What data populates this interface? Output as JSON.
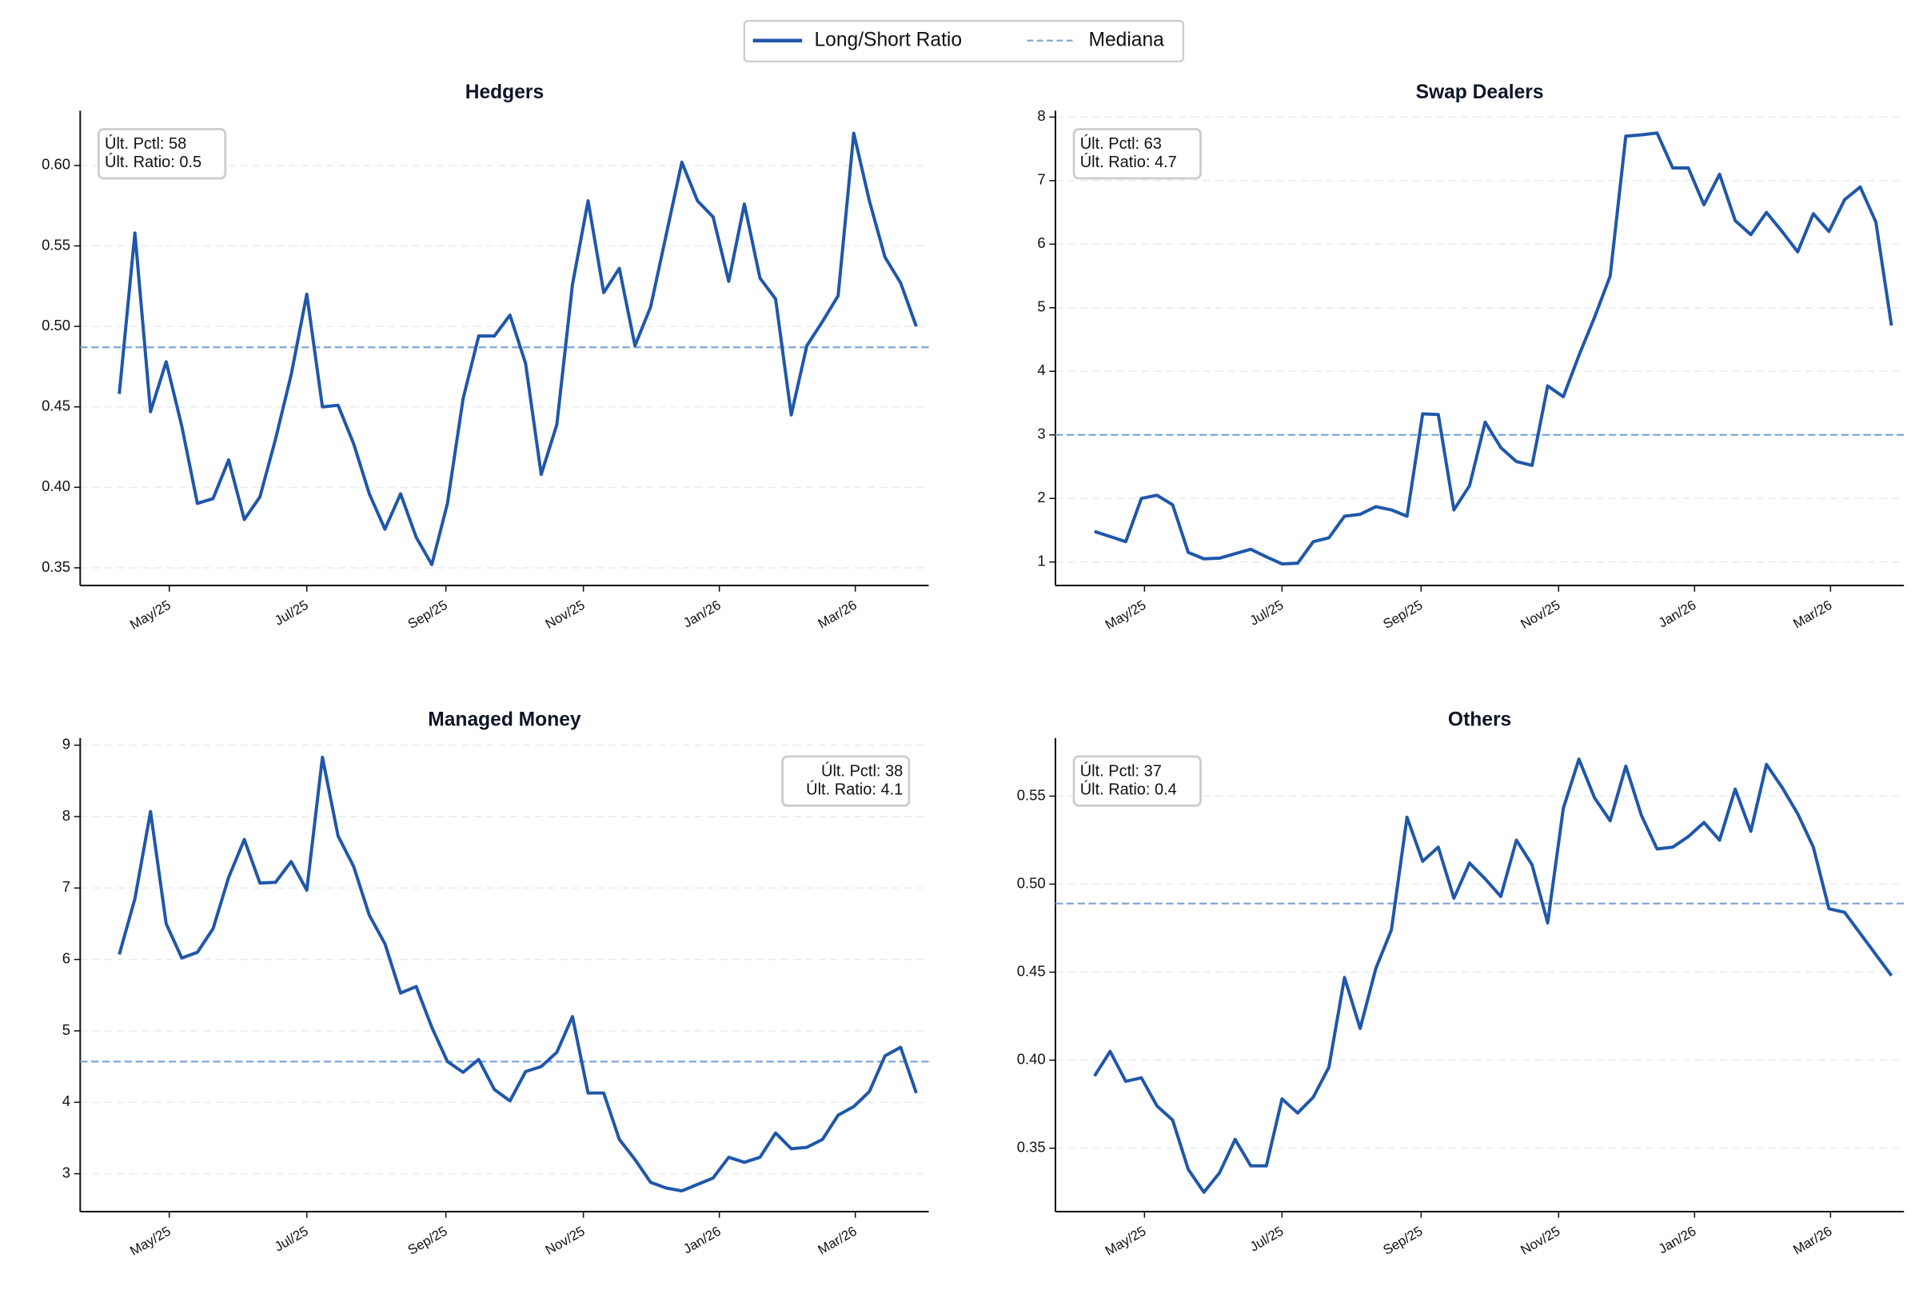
{
  "legend": [
    {
      "name": "Long/Short Ratio",
      "color": "#1f57aa"
    },
    {
      "name": "Mediana",
      "color": "#7fa6d6"
    }
  ],
  "chart_data": [
    {
      "type": "line",
      "title": "Hedgers",
      "color": "#1f57aa",
      "median_color": "#7fa6d6",
      "grid": true,
      "annotation_corner": "upper left",
      "annotation": [
        "Últ. Pctl: 58",
        "Últ. Ratio: 0.5"
      ],
      "x": [
        0,
        1,
        2,
        3,
        4,
        5,
        6,
        7,
        8,
        9,
        10,
        11,
        12,
        13,
        14,
        15,
        16,
        17,
        18,
        19,
        20,
        21,
        22,
        23,
        24,
        25,
        26,
        27,
        28,
        29,
        30,
        31,
        32,
        33,
        34,
        35,
        36,
        37,
        38,
        39,
        40,
        41,
        42,
        43,
        44,
        45,
        46,
        47,
        48,
        49,
        50,
        51
      ],
      "values": [
        0.458,
        0.558,
        0.447,
        0.478,
        0.438,
        0.39,
        0.393,
        0.417,
        0.38,
        0.394,
        0.43,
        0.47,
        0.52,
        0.45,
        0.451,
        0.427,
        0.396,
        0.374,
        0.396,
        0.369,
        0.352,
        0.39,
        0.455,
        0.494,
        0.494,
        0.507,
        0.477,
        0.408,
        0.439,
        0.526,
        0.578,
        0.521,
        0.536,
        0.488,
        0.512,
        0.557,
        0.602,
        0.578,
        0.568,
        0.528,
        0.576,
        0.53,
        0.517,
        0.445,
        0.488,
        0.503,
        0.519,
        0.62,
        0.578,
        0.543,
        0.527,
        0.5
      ],
      "median": 0.487,
      "xlim": [
        -2.5,
        51.8
      ],
      "ylim": [
        0.339,
        0.634
      ],
      "xticks": [
        {
          "value": 3.2,
          "label": "May/25"
        },
        {
          "value": 12.0,
          "label": "Jul/25"
        },
        {
          "value": 20.9,
          "label": "Sep/25"
        },
        {
          "value": 29.7,
          "label": "Nov/25"
        },
        {
          "value": 38.4,
          "label": "Jan/26"
        },
        {
          "value": 47.1,
          "label": "Mar/26"
        }
      ],
      "yticks": [
        0.35,
        {
          "value": 0.4,
          "label": "0.40"
        },
        0.45,
        {
          "value": 0.5,
          "label": "0.50"
        },
        0.55,
        {
          "value": 0.6,
          "label": "0.60"
        }
      ]
    },
    {
      "type": "line",
      "title": "Swap Dealers",
      "color": "#1f57aa",
      "median_color": "#7fa6d6",
      "grid": true,
      "annotation_corner": "upper left",
      "annotation": [
        "Últ. Pctl: 63",
        "Últ. Ratio: 4.7"
      ],
      "x": [
        0,
        1,
        2,
        3,
        4,
        5,
        6,
        7,
        8,
        9,
        10,
        11,
        12,
        13,
        14,
        15,
        16,
        17,
        18,
        19,
        20,
        21,
        22,
        23,
        24,
        25,
        26,
        27,
        28,
        29,
        30,
        31,
        32,
        33,
        34,
        35,
        36,
        37,
        38,
        39,
        40,
        41,
        42,
        43,
        44,
        45,
        46,
        47,
        48,
        49,
        50,
        51
      ],
      "values": [
        1.48,
        1.4,
        1.32,
        2.0,
        2.05,
        1.9,
        1.15,
        1.05,
        1.06,
        1.13,
        1.2,
        1.08,
        0.97,
        0.98,
        1.32,
        1.38,
        1.72,
        1.75,
        1.87,
        1.82,
        1.72,
        3.33,
        3.32,
        1.82,
        2.2,
        3.2,
        2.8,
        2.58,
        2.52,
        3.77,
        3.6,
        4.25,
        4.85,
        5.5,
        7.7,
        7.72,
        7.75,
        7.2,
        7.2,
        6.62,
        7.1,
        6.37,
        6.15,
        6.5,
        6.2,
        5.88,
        6.48,
        6.2,
        6.7,
        6.9,
        6.35,
        4.72
      ],
      "median": 3.0,
      "xlim": [
        -2.5,
        51.8
      ],
      "ylim": [
        0.63,
        8.1
      ],
      "xticks": [
        {
          "value": 3.2,
          "label": "May/25"
        },
        {
          "value": 12.0,
          "label": "Jul/25"
        },
        {
          "value": 20.9,
          "label": "Sep/25"
        },
        {
          "value": 29.7,
          "label": "Nov/25"
        },
        {
          "value": 38.4,
          "label": "Jan/26"
        },
        {
          "value": 47.1,
          "label": "Mar/26"
        }
      ],
      "yticks": [
        1,
        2,
        3,
        4,
        5,
        6,
        7,
        8
      ]
    },
    {
      "type": "line",
      "title": "Managed Money",
      "color": "#1f57aa",
      "median_color": "#7fa6d6",
      "grid": true,
      "annotation_corner": "upper right",
      "annotation": [
        "Últ. Pctl: 38",
        "Últ. Ratio: 4.1"
      ],
      "x": [
        0,
        1,
        2,
        3,
        4,
        5,
        6,
        7,
        8,
        9,
        10,
        11,
        12,
        13,
        14,
        15,
        16,
        17,
        18,
        19,
        20,
        21,
        22,
        23,
        24,
        25,
        26,
        27,
        28,
        29,
        30,
        31,
        32,
        33,
        34,
        35,
        36,
        37,
        38,
        39,
        40,
        41,
        42,
        43,
        44,
        45,
        46,
        47,
        48,
        49,
        50,
        51
      ],
      "values": [
        6.07,
        6.85,
        8.07,
        6.5,
        6.02,
        6.1,
        6.43,
        7.15,
        7.68,
        7.07,
        7.08,
        7.37,
        6.97,
        8.83,
        7.73,
        7.3,
        6.62,
        6.22,
        5.53,
        5.62,
        5.05,
        4.57,
        4.42,
        4.6,
        4.18,
        4.02,
        4.43,
        4.5,
        4.7,
        5.2,
        4.13,
        4.13,
        3.48,
        3.2,
        2.88,
        2.8,
        2.76,
        2.85,
        2.94,
        3.23,
        3.16,
        3.23,
        3.57,
        3.35,
        3.37,
        3.48,
        3.82,
        3.94,
        4.15,
        4.65,
        4.77,
        4.13
      ],
      "median": 4.57,
      "xlim": [
        -2.5,
        51.8
      ],
      "ylim": [
        2.47,
        9.1
      ],
      "xticks": [
        {
          "value": 3.2,
          "label": "May/25"
        },
        {
          "value": 12.0,
          "label": "Jul/25"
        },
        {
          "value": 20.9,
          "label": "Sep/25"
        },
        {
          "value": 29.7,
          "label": "Nov/25"
        },
        {
          "value": 38.4,
          "label": "Jan/26"
        },
        {
          "value": 47.1,
          "label": "Mar/26"
        }
      ],
      "yticks": [
        3,
        4,
        5,
        6,
        7,
        8,
        9
      ]
    },
    {
      "type": "line",
      "title": "Others",
      "color": "#1f57aa",
      "median_color": "#7fa6d6",
      "grid": true,
      "annotation_corner": "upper left",
      "annotation": [
        "Últ. Pctl: 37",
        "Últ. Ratio: 0.4"
      ],
      "x": [
        0,
        1,
        2,
        3,
        4,
        5,
        6,
        7,
        8,
        9,
        10,
        11,
        12,
        13,
        14,
        15,
        16,
        17,
        18,
        19,
        20,
        21,
        22,
        23,
        24,
        25,
        26,
        27,
        28,
        29,
        30,
        31,
        32,
        33,
        34,
        35,
        36,
        37,
        38,
        39,
        40,
        41,
        42,
        43,
        44,
        45,
        46,
        47,
        48,
        49,
        50,
        51
      ],
      "values": [
        0.391,
        0.405,
        0.388,
        0.39,
        0.374,
        0.366,
        0.338,
        0.325,
        0.336,
        0.355,
        0.34,
        0.34,
        0.378,
        0.37,
        0.379,
        0.396,
        0.447,
        0.418,
        0.452,
        0.474,
        0.538,
        0.513,
        0.521,
        0.492,
        0.512,
        0.503,
        0.493,
        0.525,
        0.511,
        0.478,
        0.543,
        0.571,
        0.549,
        0.536,
        0.567,
        0.539,
        0.52,
        0.521,
        0.527,
        0.535,
        0.525,
        0.554,
        0.53,
        0.568,
        0.555,
        0.54,
        0.521,
        0.486,
        0.484,
        0.472,
        0.46,
        0.448
      ],
      "median": 0.489,
      "xlim": [
        -2.5,
        51.8
      ],
      "ylim": [
        0.314,
        0.583
      ],
      "xticks": [
        {
          "value": 3.2,
          "label": "May/25"
        },
        {
          "value": 12.0,
          "label": "Jul/25"
        },
        {
          "value": 20.9,
          "label": "Sep/25"
        },
        {
          "value": 29.7,
          "label": "Nov/25"
        },
        {
          "value": 38.4,
          "label": "Jan/26"
        },
        {
          "value": 47.1,
          "label": "Mar/26"
        }
      ],
      "yticks": [
        0.35,
        {
          "value": 0.4,
          "label": "0.40"
        },
        0.45,
        {
          "value": 0.5,
          "label": "0.50"
        },
        0.55
      ]
    }
  ]
}
